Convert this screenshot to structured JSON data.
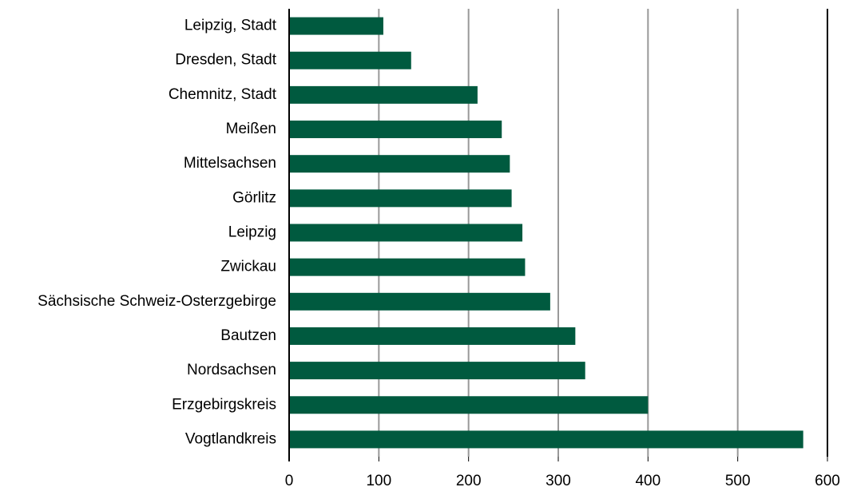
{
  "chart_data": {
    "type": "barh",
    "categories": [
      "Leipzig, Stadt",
      "Dresden, Stadt",
      "Chemnitz, Stadt",
      "Meißen",
      "Mittelsachsen",
      "Görlitz",
      "Leipzig",
      "Zwickau",
      "Sächsische Schweiz-Osterzgebirge",
      "Bautzen",
      "Nordsachsen",
      "Erzgebirgskreis",
      "Vogtlandkreis"
    ],
    "values": [
      105,
      136,
      210,
      237,
      246,
      248,
      260,
      263,
      291,
      319,
      330,
      400,
      573
    ],
    "color": "#005a3f",
    "xlim": [
      0,
      600
    ],
    "xticks": [
      0,
      100,
      200,
      300,
      400,
      500,
      600
    ],
    "grid": true
  }
}
